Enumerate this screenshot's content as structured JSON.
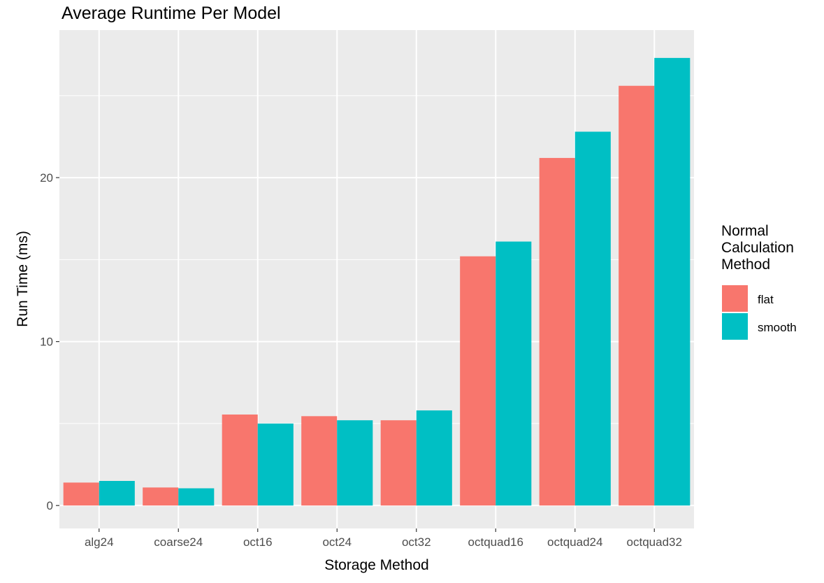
{
  "chart_data": {
    "type": "bar",
    "title": "Average Runtime Per Model",
    "xlabel": "Storage Method",
    "ylabel": "Run Time (ms)",
    "categories": [
      "alg24",
      "coarse24",
      "oct16",
      "oct24",
      "oct32",
      "octquad16",
      "octquad24",
      "octquad32"
    ],
    "series": [
      {
        "name": "flat",
        "color": "#F8766D",
        "values": [
          1.4,
          1.1,
          5.55,
          5.45,
          5.2,
          15.2,
          21.2,
          25.6
        ]
      },
      {
        "name": "smooth",
        "color": "#00BFC4",
        "values": [
          1.5,
          1.05,
          5.0,
          5.2,
          5.8,
          16.1,
          22.8,
          27.3
        ]
      }
    ],
    "ylim": [
      -1.4,
      29.0
    ],
    "yticks": [
      0,
      10,
      20
    ],
    "ytick_labels": [
      "0",
      "10",
      "20"
    ],
    "grid": true,
    "panel_background": "#EBEBEB",
    "legend": {
      "title": [
        "Normal",
        "Calculation",
        "Method"
      ],
      "position": "right"
    }
  }
}
